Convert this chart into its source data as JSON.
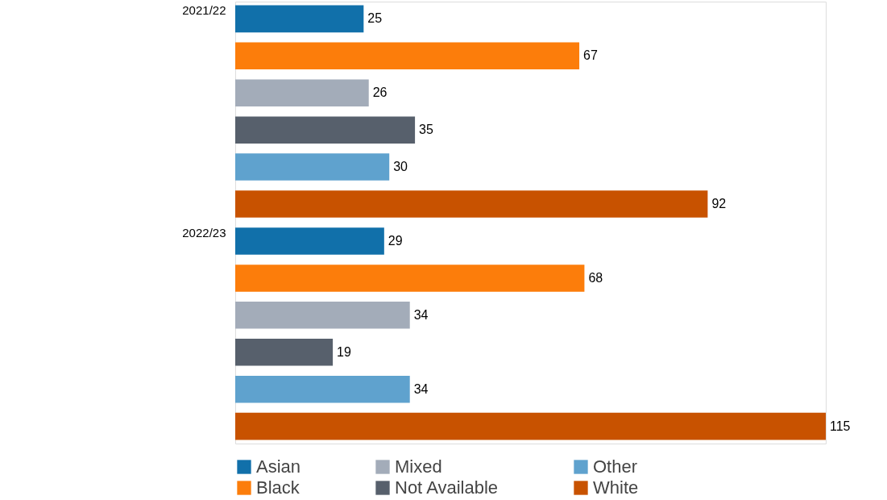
{
  "chart_data": {
    "type": "bar",
    "orientation": "horizontal",
    "categories": [
      "2021/22",
      "2022/23"
    ],
    "series": [
      {
        "name": "Asian",
        "color": "#1170aa",
        "values": [
          25,
          29
        ]
      },
      {
        "name": "Black",
        "color": "#fc7d0b",
        "values": [
          67,
          68
        ]
      },
      {
        "name": "Mixed",
        "color": "#a3acb9",
        "values": [
          26,
          34
        ]
      },
      {
        "name": "Not Available",
        "color": "#57606c",
        "values": [
          35,
          19
        ]
      },
      {
        "name": "Other",
        "color": "#5fa2ce",
        "values": [
          30,
          34
        ]
      },
      {
        "name": "White",
        "color": "#c85200",
        "values": [
          92,
          115
        ]
      }
    ],
    "data_labels": true,
    "legend": "bottom left"
  }
}
